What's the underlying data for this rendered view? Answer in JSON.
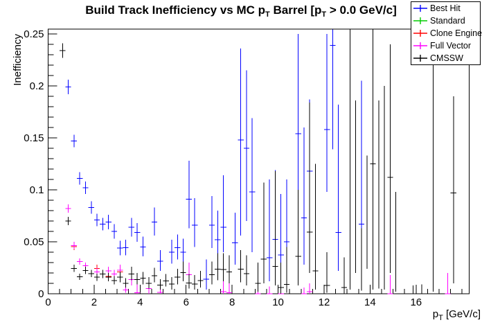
{
  "window": {
    "background": "#ffffff"
  },
  "chart_data": {
    "type": "scatter",
    "title": {
      "text": "Build Track Inefficiency vs MC p_T Barrel [p_T > 0.0 GeV/c]",
      "part1": "Build Track Inefficiency vs MC p",
      "sub1": "T",
      "part2": " Barrel [p",
      "sub2": "T",
      "part3": " > 0.0 GeV/c]"
    },
    "x_axis": {
      "title": "p_T [GeV/c]",
      "title_main": "p",
      "title_sub": "T",
      "title_rest": " [GeV/c]",
      "min": 0,
      "max": 18.31,
      "major_step": 2,
      "minor_step": 0.5,
      "labeled_max": 16,
      "major_labels": [
        "0",
        "2",
        "4",
        "6",
        "8",
        "10",
        "12",
        "14",
        "16"
      ]
    },
    "y_axis": {
      "title": "Inefficiency",
      "min": 0,
      "max": 0.2547,
      "major_step": 0.05,
      "minor_step": 0.01,
      "major_labels": [
        "0",
        "0.05",
        "0.1",
        "0.15",
        "0.2",
        "0.25"
      ]
    },
    "grid": false,
    "legend_position": "top-right",
    "marker_halfwidth": 0.125,
    "series": [
      {
        "name": "Best Hit",
        "color": "#0000ff",
        "points": [
          [
            0.875,
            0.199,
            0.192,
            0.206
          ],
          [
            1.125,
            0.147,
            0.141,
            0.153
          ],
          [
            1.375,
            0.111,
            0.105,
            0.117
          ],
          [
            1.625,
            0.102,
            0.096,
            0.108
          ],
          [
            1.875,
            0.083,
            0.077,
            0.089
          ],
          [
            2.125,
            0.071,
            0.065,
            0.077
          ],
          [
            2.375,
            0.067,
            0.061,
            0.073
          ],
          [
            2.625,
            0.069,
            0.062,
            0.076
          ],
          [
            2.875,
            0.06,
            0.053,
            0.067
          ],
          [
            3.125,
            0.044,
            0.037,
            0.051
          ],
          [
            3.375,
            0.0445,
            0.037,
            0.052
          ],
          [
            3.625,
            0.064,
            0.055,
            0.073
          ],
          [
            3.875,
            0.059,
            0.05,
            0.068
          ],
          [
            4.125,
            0.045,
            0.036,
            0.055
          ],
          [
            4.625,
            0.069,
            0.056,
            0.083
          ],
          [
            4.875,
            0.0315,
            0.022,
            0.042
          ],
          [
            5.375,
            0.04,
            0.029,
            0.052
          ],
          [
            5.625,
            0.0445,
            0.033,
            0.057
          ],
          [
            5.875,
            0.04,
            0.028,
            0.053
          ],
          [
            6.125,
            0.091,
            0.063,
            0.128
          ],
          [
            6.375,
            0.066,
            0.045,
            0.092
          ],
          [
            6.875,
            0.014,
            0.004,
            0.033
          ],
          [
            7.125,
            0.066,
            0.044,
            0.094
          ],
          [
            7.375,
            0.052,
            0.032,
            0.08
          ],
          [
            7.625,
            0.064,
            0.04,
            0.114
          ],
          [
            8.125,
            0.049,
            0.028,
            0.078
          ],
          [
            8.375,
            0.148,
            0.056,
            0.236
          ],
          [
            8.625,
            0.14,
            0.07,
            0.215
          ],
          [
            8.875,
            0.098,
            0.04,
            0.169
          ],
          [
            9.625,
            0.0347,
            0.012,
            0.11
          ],
          [
            9.875,
            0.0525,
            0.018,
            0.119
          ],
          [
            10.125,
            0.0375,
            0.012,
            0.096
          ],
          [
            10.375,
            0.05,
            0.018,
            0.11
          ],
          [
            10.875,
            0.154,
            0.068,
            0.25
          ],
          [
            11.125,
            0.073,
            0.028,
            0.16
          ],
          [
            11.375,
            0.118,
            0.055,
            0.187
          ],
          [
            12.125,
            0.158,
            0.098,
            0.25
          ],
          [
            12.375,
            0.239,
            0.139,
            0.2545
          ],
          [
            12.625,
            0.059,
            0.022,
            0.182
          ],
          [
            13.625,
            0.067,
            0.026,
            0.205
          ]
        ]
      },
      {
        "name": "Standard",
        "color": "#00cc00",
        "points": [
          [
            1.125,
            0.0455,
            0.042,
            0.049
          ],
          [
            2.125,
            0.0242,
            0.021,
            0.028
          ],
          [
            2.625,
            0.0167,
            0.013,
            0.021
          ],
          [
            3.125,
            0.021,
            0.017,
            0.026
          ]
        ]
      },
      {
        "name": "Clone Engine",
        "color": "#ff0000",
        "points": [
          [
            1.125,
            0.0455,
            0.042,
            0.049
          ],
          [
            2.125,
            0.0242,
            0.021,
            0.028
          ],
          [
            2.625,
            0.0167,
            0.013,
            0.021
          ],
          [
            3.125,
            0.021,
            0.017,
            0.026
          ]
        ]
      },
      {
        "name": "Full Vector",
        "color": "#ff00ff",
        "points": [
          [
            0.875,
            0.082,
            0.078,
            0.086
          ],
          [
            1.125,
            0.0465,
            0.043,
            0.05
          ],
          [
            1.375,
            0.031,
            0.028,
            0.034
          ],
          [
            1.625,
            0.027,
            0.024,
            0.03
          ],
          [
            1.875,
            0.0195,
            0.016,
            0.023
          ],
          [
            2.125,
            0.021,
            0.018,
            0.025
          ],
          [
            2.625,
            0.022,
            0.018,
            0.026
          ],
          [
            2.875,
            0.019,
            0.015,
            0.023
          ],
          [
            3.125,
            0.0227,
            0.018,
            0.028
          ],
          [
            3.375,
            0.0038,
            0.001,
            0.009
          ],
          [
            3.625,
            0.0138,
            0.008,
            0.021
          ],
          [
            3.875,
            0.001,
            0.0,
            0.01
          ],
          [
            4.375,
            0.0049,
            0.0,
            0.016
          ],
          [
            4.875,
            0.0015,
            0.0,
            0.012
          ],
          [
            6.125,
            0.0182,
            0.008,
            0.03
          ],
          [
            7.625,
            0.002,
            0.0,
            0.014
          ],
          [
            7.875,
            0.001,
            0.0,
            0.013
          ],
          [
            9.125,
            0.0,
            0.0,
            0.006
          ],
          [
            9.625,
            0.0,
            0.0,
            0.007
          ],
          [
            10.125,
            0.0,
            0.0,
            0.007
          ],
          [
            11.125,
            0.0,
            0.0,
            0.006
          ],
          [
            11.375,
            0.002,
            0.0,
            0.01
          ],
          [
            14.875,
            0.0,
            0.0,
            0.018
          ],
          [
            17.375,
            0.0,
            0.0,
            0.02
          ]
        ]
      },
      {
        "name": "CMSSW",
        "color": "#000000",
        "points": [
          [
            0.625,
            0.234,
            0.227,
            0.241
          ],
          [
            0.875,
            0.07,
            0.066,
            0.074
          ],
          [
            1.125,
            0.0245,
            0.021,
            0.028
          ],
          [
            1.375,
            0.0165,
            0.0135,
            0.0195
          ],
          [
            1.625,
            0.0225,
            0.019,
            0.026
          ],
          [
            1.875,
            0.0195,
            0.016,
            0.023
          ],
          [
            2.125,
            0.016,
            0.0125,
            0.0195
          ],
          [
            2.375,
            0.019,
            0.015,
            0.023
          ],
          [
            2.625,
            0.016,
            0.012,
            0.02
          ],
          [
            2.875,
            0.0127,
            0.009,
            0.017
          ],
          [
            3.125,
            0.016,
            0.011,
            0.021
          ],
          [
            3.375,
            0.01,
            0.006,
            0.015
          ],
          [
            3.625,
            0.019,
            0.013,
            0.026
          ],
          [
            3.875,
            0.0138,
            0.009,
            0.02
          ],
          [
            4.125,
            0.0149,
            0.009,
            0.021
          ],
          [
            4.375,
            0.01,
            0.005,
            0.016
          ],
          [
            4.625,
            0.0175,
            0.011,
            0.025
          ],
          [
            4.875,
            0.0082,
            0.004,
            0.014
          ],
          [
            5.125,
            0.0122,
            0.007,
            0.019
          ],
          [
            5.375,
            0.0093,
            0.004,
            0.016
          ],
          [
            5.625,
            0.016,
            0.009,
            0.024
          ],
          [
            5.875,
            0.0205,
            0.012,
            0.031
          ],
          [
            6.125,
            0.0105,
            0.005,
            0.019
          ],
          [
            6.375,
            0.0093,
            0.004,
            0.018
          ],
          [
            6.625,
            0.0127,
            0.006,
            0.022
          ],
          [
            7.125,
            0.0182,
            0.009,
            0.031
          ],
          [
            7.375,
            0.0238,
            0.013,
            0.039
          ],
          [
            7.625,
            0.0233,
            0.012,
            0.039
          ],
          [
            7.875,
            0.0211,
            0.01,
            0.037
          ],
          [
            8.375,
            0.0238,
            0.011,
            0.042
          ],
          [
            8.625,
            0.0193,
            0.008,
            0.037
          ],
          [
            9.125,
            0.01,
            0.002,
            0.03
          ],
          [
            9.375,
            0.0335,
            0.01,
            0.107
          ],
          [
            9.875,
            0.0265,
            0.008,
            0.118
          ],
          [
            10.125,
            0.006,
            0.0,
            0.03
          ],
          [
            10.375,
            0.009,
            0.001,
            0.045
          ],
          [
            10.875,
            0.036,
            0.008,
            0.1
          ],
          [
            11.375,
            0.0593,
            0.02,
            0.184
          ],
          [
            11.625,
            0.022,
            0.004,
            0.125
          ],
          [
            12.125,
            0.008,
            0.001,
            0.04
          ],
          [
            12.875,
            0.006,
            0.0,
            0.035
          ],
          [
            13.125,
            null,
            0.004,
            0.2545
          ],
          [
            13.375,
            null,
            0.02,
            0.186
          ],
          [
            13.625,
            null,
            0.003,
            0.063
          ],
          [
            13.875,
            null,
            0.024,
            0.133
          ],
          [
            14.125,
            0.125,
            0.004,
            0.2545
          ],
          [
            14.375,
            null,
            0.005,
            0.186
          ],
          [
            14.625,
            null,
            0.004,
            0.2
          ],
          [
            14.875,
            0.112,
            0.02,
            0.24
          ],
          [
            15.125,
            null,
            0.002,
            0.098
          ],
          [
            15.875,
            null,
            0.0,
            0.008
          ],
          [
            16.25,
            null,
            0.0,
            0.009
          ],
          [
            16.75,
            null,
            0.002,
            0.2545
          ],
          [
            17.625,
            0.097,
            0.01,
            0.19
          ]
        ]
      }
    ]
  }
}
